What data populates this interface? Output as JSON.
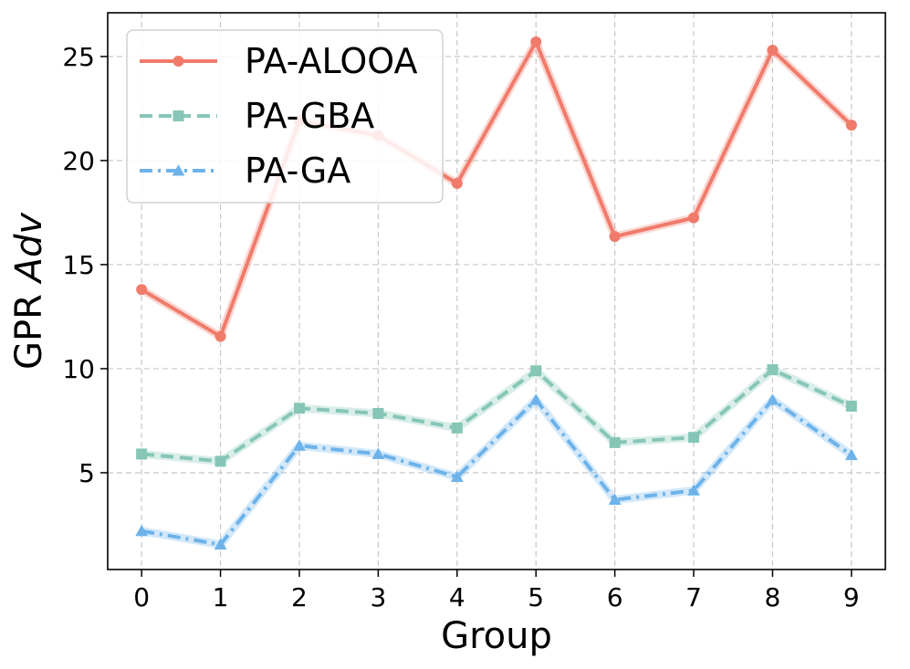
{
  "chart_data": {
    "type": "line",
    "title": "",
    "xlabel": "Group",
    "ylabel": {
      "prefix": "GPR ",
      "italic": "Adv"
    },
    "x": [
      0,
      1,
      2,
      3,
      4,
      5,
      6,
      7,
      8,
      9
    ],
    "xlim": [
      -0.43,
      9.43
    ],
    "ylim": [
      0.35,
      27.1
    ],
    "yticks": [
      5,
      10,
      15,
      20,
      25
    ],
    "grid": true,
    "legend_position": "top-left",
    "series": [
      {
        "name": "PA-ALOOA",
        "color": "#f07b6b",
        "marker": "circle",
        "dash": "solid",
        "values": [
          13.8,
          11.55,
          21.9,
          21.2,
          18.9,
          25.7,
          16.35,
          17.25,
          25.3,
          21.7
        ]
      },
      {
        "name": "PA-GBA",
        "color": "#86c6b7",
        "marker": "square",
        "dash": "dashed",
        "values": [
          5.9,
          5.55,
          8.1,
          7.85,
          7.15,
          9.9,
          6.45,
          6.7,
          9.95,
          8.2
        ]
      },
      {
        "name": "PA-GA",
        "color": "#6db3ea",
        "marker": "triangle",
        "dash": "dashdot",
        "values": [
          2.2,
          1.55,
          6.3,
          5.9,
          4.8,
          8.5,
          3.7,
          4.15,
          8.5,
          5.85
        ]
      }
    ]
  }
}
